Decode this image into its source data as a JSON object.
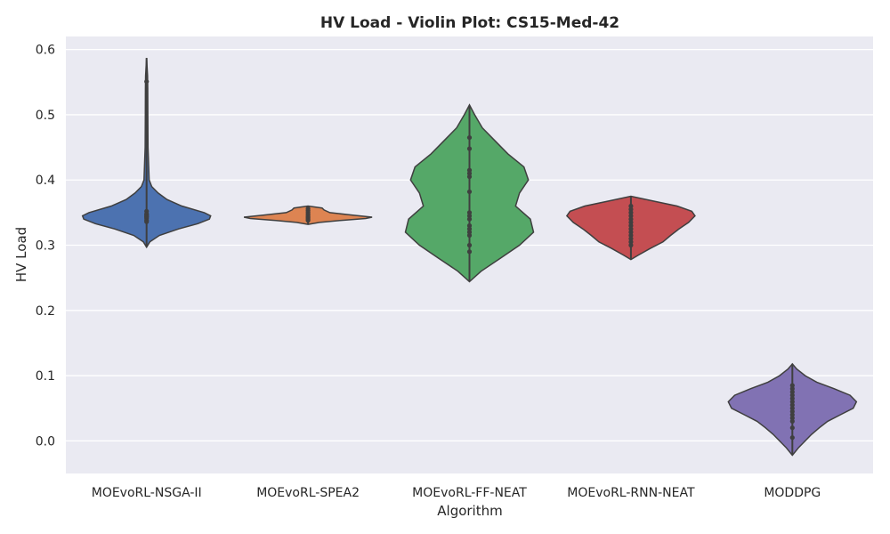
{
  "chart_data": {
    "type": "violin",
    "title": "HV Load - Violin Plot: CS15-Med-42",
    "xlabel": "Algorithm",
    "ylabel": "HV Load",
    "ylim": [
      -0.05,
      0.62
    ],
    "yticks": [
      0.0,
      0.1,
      0.2,
      0.3,
      0.4,
      0.5,
      0.6
    ],
    "ytick_labels": [
      "0.0",
      "0.1",
      "0.2",
      "0.3",
      "0.4",
      "0.5",
      "0.6"
    ],
    "grid": true,
    "categories": [
      "MOEvoRL-NSGA-II",
      "MOEvoRL-SPEA2",
      "MOEvoRL-FF-NEAT",
      "MOEvoRL-RNN-NEAT",
      "MODDPG"
    ],
    "colors": [
      "#4c72b0",
      "#dd8452",
      "#55a868",
      "#c44e52",
      "#8172b3"
    ],
    "series": [
      {
        "min": 0.297,
        "max": 0.587,
        "points": [
          0.551,
          0.352,
          0.348,
          0.345,
          0.343,
          0.341,
          0.338,
          0.336,
          0.347,
          0.344
        ],
        "profile": [
          [
            0.297,
            0.0
          ],
          [
            0.305,
            0.05
          ],
          [
            0.315,
            0.2
          ],
          [
            0.325,
            0.5
          ],
          [
            0.333,
            0.8
          ],
          [
            0.34,
            0.98
          ],
          [
            0.345,
            1.0
          ],
          [
            0.35,
            0.9
          ],
          [
            0.36,
            0.55
          ],
          [
            0.37,
            0.32
          ],
          [
            0.38,
            0.18
          ],
          [
            0.39,
            0.08
          ],
          [
            0.4,
            0.04
          ],
          [
            0.45,
            0.022
          ],
          [
            0.5,
            0.02
          ],
          [
            0.54,
            0.018
          ],
          [
            0.56,
            0.015
          ],
          [
            0.587,
            0.0
          ]
        ]
      },
      {
        "min": 0.332,
        "max": 0.36,
        "points": [
          0.356,
          0.353,
          0.35,
          0.347,
          0.344,
          0.342,
          0.34,
          0.338
        ],
        "profile": [
          [
            0.332,
            0.0
          ],
          [
            0.335,
            0.18
          ],
          [
            0.338,
            0.5
          ],
          [
            0.341,
            0.9
          ],
          [
            0.343,
            1.0
          ],
          [
            0.346,
            0.7
          ],
          [
            0.35,
            0.34
          ],
          [
            0.354,
            0.25
          ],
          [
            0.357,
            0.22
          ],
          [
            0.36,
            0.0
          ]
        ]
      },
      {
        "min": 0.244,
        "max": 0.515,
        "points": [
          0.465,
          0.448,
          0.415,
          0.41,
          0.405,
          0.382,
          0.35,
          0.345,
          0.34,
          0.33,
          0.325,
          0.32,
          0.315,
          0.3,
          0.29
        ],
        "profile": [
          [
            0.244,
            0.0
          ],
          [
            0.26,
            0.18
          ],
          [
            0.28,
            0.48
          ],
          [
            0.3,
            0.78
          ],
          [
            0.32,
            1.0
          ],
          [
            0.34,
            0.95
          ],
          [
            0.36,
            0.72
          ],
          [
            0.38,
            0.78
          ],
          [
            0.4,
            0.92
          ],
          [
            0.42,
            0.85
          ],
          [
            0.44,
            0.6
          ],
          [
            0.46,
            0.4
          ],
          [
            0.48,
            0.2
          ],
          [
            0.5,
            0.08
          ],
          [
            0.515,
            0.0
          ]
        ]
      },
      {
        "min": 0.278,
        "max": 0.375,
        "points": [
          0.36,
          0.355,
          0.35,
          0.345,
          0.34,
          0.335,
          0.33,
          0.325,
          0.32,
          0.315,
          0.31,
          0.305,
          0.3
        ],
        "profile": [
          [
            0.278,
            0.0
          ],
          [
            0.285,
            0.12
          ],
          [
            0.295,
            0.3
          ],
          [
            0.305,
            0.5
          ],
          [
            0.315,
            0.62
          ],
          [
            0.325,
            0.75
          ],
          [
            0.335,
            0.9
          ],
          [
            0.345,
            1.0
          ],
          [
            0.352,
            0.95
          ],
          [
            0.36,
            0.72
          ],
          [
            0.367,
            0.38
          ],
          [
            0.375,
            0.0
          ]
        ]
      },
      {
        "min": -0.022,
        "max": 0.118,
        "points": [
          0.085,
          0.08,
          0.075,
          0.07,
          0.065,
          0.06,
          0.055,
          0.05,
          0.045,
          0.04,
          0.035,
          0.03,
          0.02,
          0.005
        ],
        "profile": [
          [
            -0.022,
            0.0
          ],
          [
            -0.01,
            0.1
          ],
          [
            0.0,
            0.2
          ],
          [
            0.01,
            0.3
          ],
          [
            0.02,
            0.42
          ],
          [
            0.03,
            0.55
          ],
          [
            0.04,
            0.75
          ],
          [
            0.05,
            0.95
          ],
          [
            0.06,
            1.0
          ],
          [
            0.07,
            0.9
          ],
          [
            0.08,
            0.65
          ],
          [
            0.09,
            0.38
          ],
          [
            0.1,
            0.2
          ],
          [
            0.11,
            0.07
          ],
          [
            0.118,
            0.0
          ]
        ]
      }
    ]
  }
}
